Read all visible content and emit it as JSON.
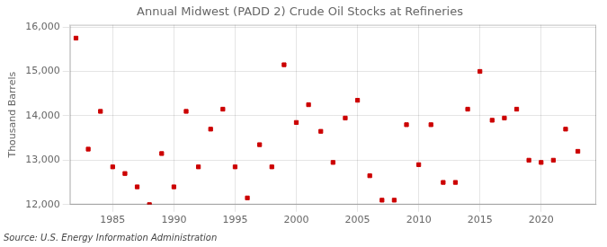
{
  "chart_data": {
    "type": "scatter",
    "title": "Annual Midwest (PADD 2) Crude Oil Stocks at Refineries",
    "ylabel": "Thousand Barrels",
    "annotation": "Source: U.S. Energy Information Administration",
    "x": [
      1982,
      1983,
      1984,
      1985,
      1986,
      1987,
      1988,
      1989,
      1990,
      1991,
      1992,
      1993,
      1994,
      1995,
      1996,
      1997,
      1998,
      1999,
      2000,
      2001,
      2002,
      2003,
      2004,
      2005,
      2006,
      2007,
      2008,
      2009,
      2010,
      2011,
      2012,
      2013,
      2014,
      2015,
      2016,
      2017,
      2018,
      2019,
      2020,
      2021,
      2022,
      2023
    ],
    "values": [
      15750,
      13250,
      14100,
      12850,
      12700,
      12400,
      12000,
      13150,
      12400,
      14100,
      12850,
      13700,
      14150,
      12850,
      12150,
      13350,
      12850,
      15150,
      13850,
      14250,
      13650,
      12950,
      13950,
      14350,
      12650,
      12100,
      12100,
      13800,
      12900,
      13800,
      12500,
      12500,
      14150,
      15000,
      13900,
      13950,
      14150,
      13000,
      12950,
      13000,
      13700,
      13200
    ],
    "color": "#cc0000",
    "marker": "square",
    "xlim": [
      1981.5,
      2024.5
    ],
    "xticks": [
      1985,
      1990,
      1995,
      2000,
      2005,
      2010,
      2015,
      2020
    ],
    "ylim": [
      12000,
      16050
    ],
    "yticks": [
      {
        "value": 12000,
        "label": "12,000"
      },
      {
        "value": 13000,
        "label": "13,000"
      },
      {
        "value": 14000,
        "label": "14,000"
      },
      {
        "value": 15000,
        "label": "15,000"
      },
      {
        "value": 16000,
        "label": "16,000"
      }
    ],
    "grid": true
  }
}
